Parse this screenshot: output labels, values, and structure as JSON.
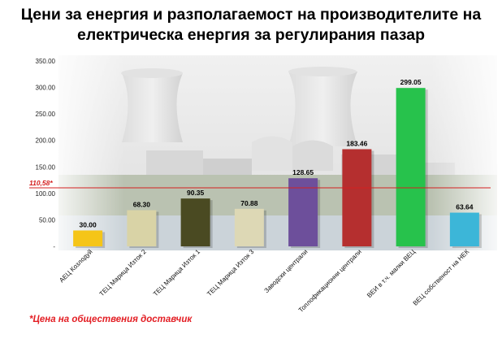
{
  "title": {
    "line1": "Цени за енергия и разполагаемост на производителите на",
    "line2": "електрическа енергия за регулирания пазар"
  },
  "footnote": "*Цена на обществения доставчик",
  "chart_data": {
    "type": "bar",
    "categories": [
      "АЕЦ Козлодуй",
      "ТЕЦ Марица Изток 2",
      "ТЕЦ Марица Изток 1",
      "ТЕЦ Марица Изток 3",
      "Заводски централи",
      "Топлофикационни централи",
      "ВЕИ в т.ч. малки ВЕЦ",
      "ВЕЦ собственост на НЕК"
    ],
    "values": [
      30.0,
      68.3,
      90.35,
      70.88,
      128.65,
      183.46,
      299.05,
      63.64
    ],
    "value_labels": [
      "30.00",
      "68.30",
      "90.35",
      "70.88",
      "128.65",
      "183.46",
      "299.05",
      "63.64"
    ],
    "colors": [
      "#f5c518",
      "#d9d3a6",
      "#4a4a22",
      "#ddd8b5",
      "#6d4f9b",
      "#b52f2f",
      "#27c24c",
      "#3cb6d8"
    ],
    "yticks": [
      0,
      50,
      100,
      150,
      200,
      250,
      300,
      350
    ],
    "ytick_labels": [
      "-",
      "50.00",
      "100.00",
      "150.00",
      "200.00",
      "250.00",
      "300.00",
      "350.00"
    ],
    "ylim": [
      0,
      350
    ],
    "reference_line": {
      "value": 110.58,
      "label": "110,58*",
      "color": "#d42020"
    },
    "background": "power-plant-photo"
  }
}
